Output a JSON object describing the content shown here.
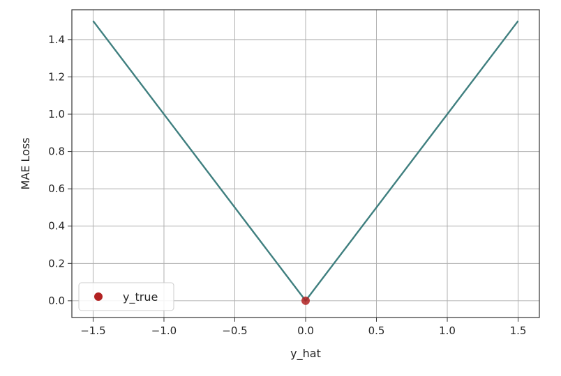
{
  "chart_data": {
    "type": "line",
    "xlabel": "y_hat",
    "ylabel": "MAE Loss",
    "xlim": [
      -1.65,
      1.65
    ],
    "ylim": [
      -0.09,
      1.56
    ],
    "x_ticks": [
      -1.5,
      -1.0,
      -0.5,
      0.0,
      0.5,
      1.0,
      1.5
    ],
    "x_tick_labels": [
      "−1.5",
      "−1.0",
      "−0.5",
      "0.0",
      "0.5",
      "1.0",
      "1.5"
    ],
    "y_ticks": [
      0.0,
      0.2,
      0.4,
      0.6,
      0.8,
      1.0,
      1.2,
      1.4
    ],
    "y_tick_labels": [
      "0.0",
      "0.2",
      "0.4",
      "0.6",
      "0.8",
      "1.0",
      "1.2",
      "1.4"
    ],
    "grid": true,
    "legend_position": "lower-left",
    "series": [
      {
        "type": "line",
        "color": "#3f7f7f",
        "x": [
          -1.5,
          0.0,
          1.5
        ],
        "y": [
          1.5,
          0.0,
          1.5
        ]
      },
      {
        "name": "y_true",
        "type": "scatter",
        "color": "#b22222",
        "x": [
          0.0
        ],
        "y": [
          0.0
        ]
      }
    ]
  }
}
